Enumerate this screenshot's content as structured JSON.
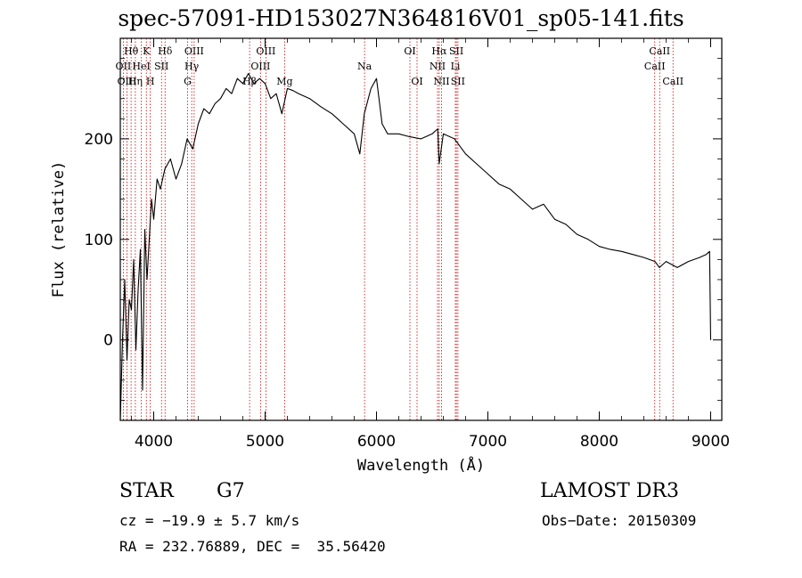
{
  "chart_data": {
    "type": "line",
    "title": "spec-57091-HD153027N364816V01_sp05-141.fits",
    "xlabel": "Wavelength (Å)",
    "ylabel": "Flux (relative)",
    "xlim": [
      3700,
      9100
    ],
    "ylim": [
      -80,
      300
    ],
    "xticks": [
      4000,
      5000,
      6000,
      7000,
      8000,
      9000
    ],
    "yticks": [
      0,
      100,
      200
    ],
    "grid": false,
    "series": [
      {
        "name": "spectrum",
        "x": [
          3700,
          3720,
          3740,
          3760,
          3780,
          3800,
          3820,
          3840,
          3860,
          3880,
          3900,
          3920,
          3940,
          3960,
          3980,
          4000,
          4030,
          4060,
          4100,
          4150,
          4200,
          4250,
          4300,
          4350,
          4400,
          4450,
          4500,
          4550,
          4600,
          4650,
          4700,
          4750,
          4800,
          4850,
          4900,
          4950,
          5000,
          5050,
          5100,
          5150,
          5200,
          5250,
          5300,
          5400,
          5500,
          5600,
          5700,
          5800,
          5850,
          5890,
          5950,
          6000,
          6050,
          6100,
          6200,
          6300,
          6400,
          6500,
          6550,
          6562,
          6600,
          6700,
          6800,
          6900,
          7000,
          7100,
          7200,
          7300,
          7400,
          7500,
          7600,
          7700,
          7800,
          7900,
          8000,
          8100,
          8200,
          8300,
          8400,
          8500,
          8540,
          8600,
          8700,
          8800,
          8900,
          8960,
          8990,
          9000
        ],
        "values": [
          -80,
          0,
          60,
          -20,
          40,
          30,
          80,
          -10,
          50,
          90,
          -50,
          110,
          60,
          100,
          140,
          120,
          160,
          150,
          170,
          180,
          160,
          175,
          200,
          190,
          215,
          230,
          225,
          235,
          240,
          250,
          245,
          260,
          255,
          265,
          255,
          260,
          255,
          240,
          245,
          225,
          250,
          248,
          245,
          240,
          232,
          225,
          215,
          205,
          185,
          225,
          250,
          260,
          215,
          205,
          205,
          202,
          200,
          205,
          210,
          175,
          205,
          200,
          185,
          175,
          165,
          155,
          150,
          140,
          130,
          135,
          120,
          115,
          105,
          100,
          93,
          90,
          88,
          85,
          82,
          78,
          72,
          78,
          72,
          78,
          82,
          85,
          88,
          0
        ]
      }
    ],
    "line_labels": [
      {
        "label": "Hθ",
        "x": 3797,
        "row": 1
      },
      {
        "label": "OII",
        "x": 3727,
        "row": 2
      },
      {
        "label": "OIII",
        "x": 3760,
        "row": 3
      },
      {
        "label": "Hη",
        "x": 3835,
        "row": 3
      },
      {
        "label": "HeI",
        "x": 3889,
        "row": 2
      },
      {
        "label": "K",
        "x": 3934,
        "row": 1
      },
      {
        "label": "H",
        "x": 3969,
        "row": 3
      },
      {
        "label": "SII",
        "x": 4070,
        "row": 2
      },
      {
        "label": "Hδ",
        "x": 4102,
        "row": 1
      },
      {
        "label": "OIII",
        "x": 4363,
        "row": 1
      },
      {
        "label": "Hγ",
        "x": 4341,
        "row": 2
      },
      {
        "label": "G",
        "x": 4304,
        "row": 3
      },
      {
        "label": "OIII",
        "x": 5007,
        "row": 1
      },
      {
        "label": "OIII",
        "x": 4959,
        "row": 2
      },
      {
        "label": "Hβ",
        "x": 4861,
        "row": 3
      },
      {
        "label": "Mg",
        "x": 5175,
        "row": 3
      },
      {
        "label": "Na",
        "x": 5893,
        "row": 2
      },
      {
        "label": "OI",
        "x": 6300,
        "row": 1
      },
      {
        "label": "OI",
        "x": 6364,
        "row": 3
      },
      {
        "label": "Hα",
        "x": 6563,
        "row": 1
      },
      {
        "label": "NII",
        "x": 6548,
        "row": 2
      },
      {
        "label": "NII",
        "x": 6584,
        "row": 3
      },
      {
        "label": "SII",
        "x": 6717,
        "row": 1
      },
      {
        "label": "Li",
        "x": 6708,
        "row": 2
      },
      {
        "label": "SII",
        "x": 6731,
        "row": 3
      },
      {
        "label": "CaII",
        "x": 8542,
        "row": 1
      },
      {
        "label": "CaII",
        "x": 8498,
        "row": 2
      },
      {
        "label": "CaII",
        "x": 8662,
        "row": 3
      }
    ]
  },
  "info": {
    "object": "STAR",
    "subclass": "G7",
    "survey": "LAMOST DR3",
    "cz": "cz = −19.9 ± 5.7 km/s",
    "obs_date": "Obs−Date: 20150309",
    "coords": "RA = 232.76889, DEC =  35.56420"
  },
  "colors": {
    "line_marker": "#cc0000",
    "spectrum": "#000000"
  }
}
